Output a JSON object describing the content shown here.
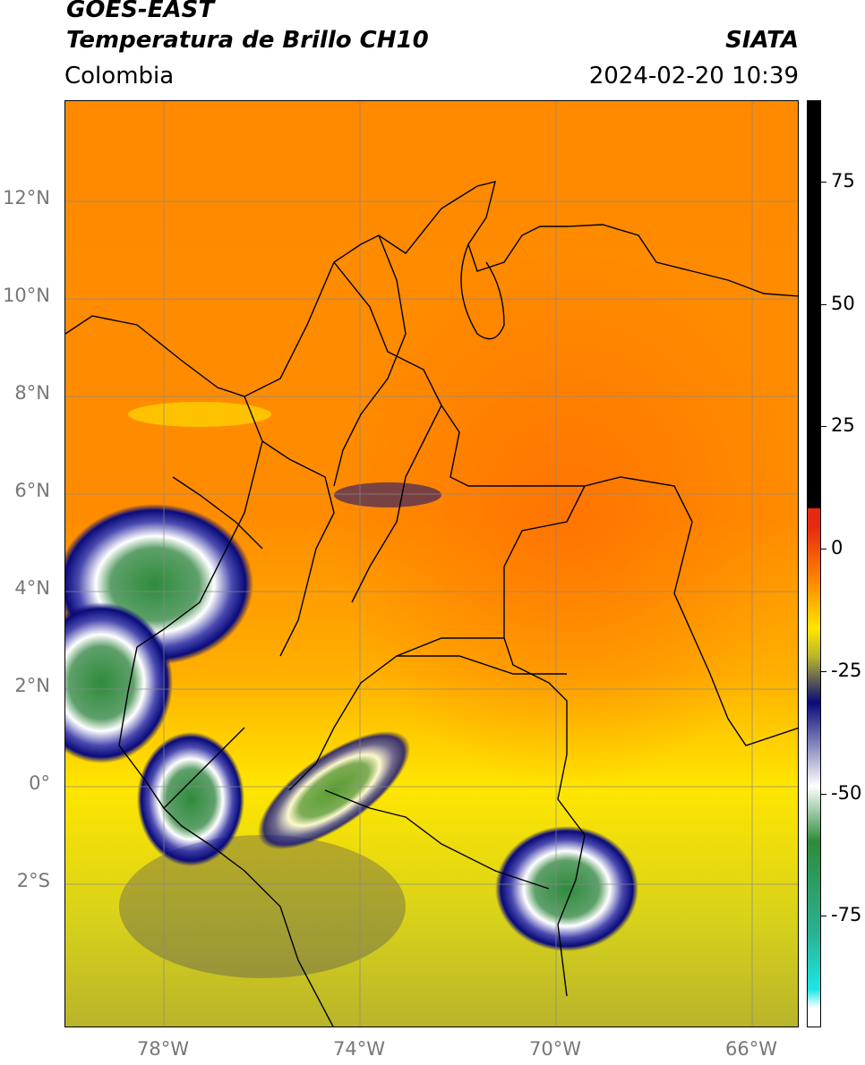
{
  "header": {
    "satellite": "GOES-EAST",
    "product": "Temperatura de Brillo CH10",
    "region": "Colombia",
    "agency": "SIATA",
    "datetime": "2024-02-20 10:39"
  },
  "map": {
    "lat_labels": [
      "12°N",
      "10°N",
      "8°N",
      "6°N",
      "4°N",
      "2°N",
      "0°",
      "2°S"
    ],
    "lon_labels": [
      "78°W",
      "74°W",
      "70°W",
      "66°W"
    ],
    "extent": {
      "lon_min": -80,
      "lon_max": -65,
      "lat_min": -5,
      "lat_max": 14
    }
  },
  "colorbar": {
    "ticks": [
      "75",
      "50",
      "25",
      "0",
      "-25",
      "-50",
      "-75"
    ],
    "tick_values": [
      75,
      50,
      25,
      0,
      -25,
      -50,
      -75
    ],
    "colors": {
      "warm_high": "#000000",
      "warm": "#e62a10",
      "orange": "#ff8a00",
      "yellow": "#ffe600",
      "olive": "#b9b62b",
      "navy": "#0a0a7a",
      "white": "#ffffff",
      "green": "#2e8b3c",
      "teal": "#2ab393",
      "cyan": "#1ee6e6"
    }
  }
}
